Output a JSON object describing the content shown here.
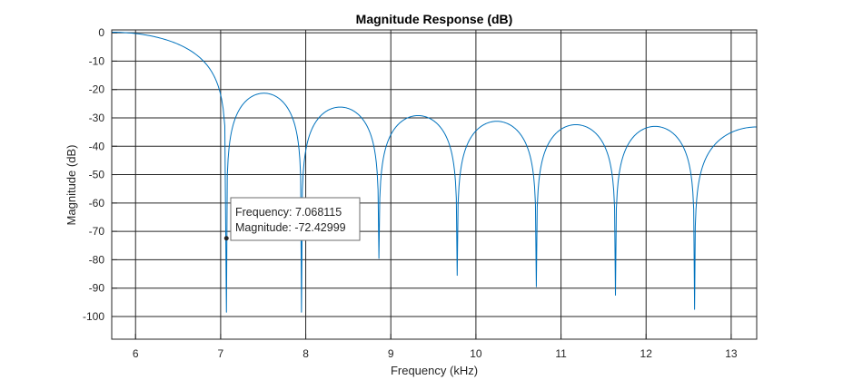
{
  "chart_data": {
    "type": "line",
    "title": "Magnitude Response (dB)",
    "xlabel": "Frequency (kHz)",
    "ylabel": "Magnitude (dB)",
    "xlim": [
      5.72,
      13.3
    ],
    "ylim": [
      -108,
      1
    ],
    "x_ticks": [
      "6",
      "7",
      "8",
      "9",
      "10",
      "11",
      "12",
      "13"
    ],
    "y_ticks": [
      "0",
      "-10",
      "-20",
      "-30",
      "-40",
      "-50",
      "-60",
      "-70",
      "-80",
      "-90",
      "-100"
    ],
    "grid": true,
    "series_color": "#0072bd",
    "mainlobe": {
      "x_start": 5.72,
      "y_start": 0.2,
      "x_null": 7.068115
    },
    "lobes": [
      {
        "x_start": 7.068115,
        "x_end": 7.95,
        "peak": -21.3,
        "null_depth": -98.5
      },
      {
        "x_start": 7.95,
        "x_end": 8.86,
        "peak": -26.2,
        "null_depth": -79.5
      },
      {
        "x_start": 8.86,
        "x_end": 9.78,
        "peak": -29.2,
        "null_depth": -85.5
      },
      {
        "x_start": 9.78,
        "x_end": 10.71,
        "peak": -31.2,
        "null_depth": -89.5
      },
      {
        "x_start": 10.71,
        "x_end": 11.64,
        "peak": -32.4,
        "null_depth": -92.5
      },
      {
        "x_start": 11.64,
        "x_end": 12.57,
        "peak": -33.0,
        "null_depth": -97.5
      },
      {
        "x_start": 12.57,
        "x_end": 13.3,
        "peak": -33.2,
        "end_value": -33.2
      }
    ],
    "datatip": {
      "x": 7.068115,
      "y": -72.42999,
      "line1": "Frequency: 7.068115",
      "line2": "Magnitude: -72.42999"
    }
  }
}
